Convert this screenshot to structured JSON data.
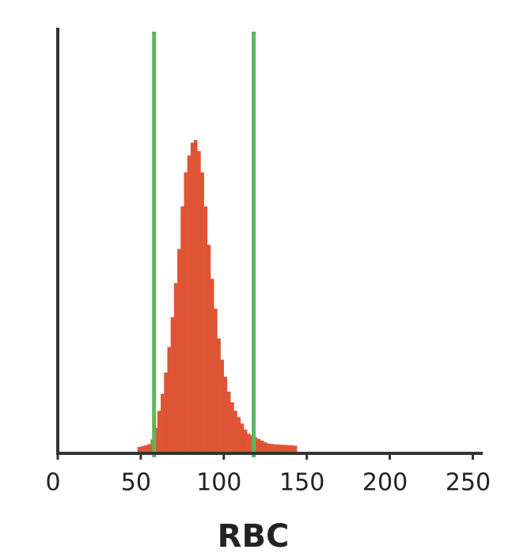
{
  "chart_data": {
    "type": "histogram",
    "x_label": "RBC",
    "bins": [
      48,
      50,
      52,
      54,
      56,
      58,
      60,
      62,
      64,
      66,
      68,
      70,
      72,
      74,
      76,
      78,
      80,
      82,
      84,
      86,
      88,
      90,
      92,
      94,
      96,
      98,
      100,
      102,
      104,
      106,
      108,
      110,
      112,
      114,
      116,
      118,
      120,
      122,
      124,
      126,
      128,
      130,
      132,
      134,
      136,
      138,
      140,
      142,
      144
    ],
    "values": [
      1.5,
      1.7,
      1.9,
      2.2,
      3.3,
      6,
      10,
      14,
      19,
      25,
      32,
      40,
      48,
      58,
      66,
      70,
      73,
      73.6,
      71,
      66,
      58,
      49,
      41,
      34,
      27,
      22,
      18,
      14.5,
      12,
      10,
      8.5,
      7,
      5.6,
      4.6,
      4.2,
      3.8,
      3.4,
      3,
      2.6,
      2.3,
      2.2,
      2.1,
      2.1,
      2,
      2,
      1.9,
      1.9,
      1.8
    ],
    "color": "#e05436",
    "thresholds": [
      58,
      118
    ],
    "threshold_color": "#5cb85c",
    "xlim": [
      0,
      256
    ],
    "xticks": [
      0,
      50,
      100,
      150,
      200,
      250
    ],
    "ylim": [
      0,
      100
    ]
  }
}
